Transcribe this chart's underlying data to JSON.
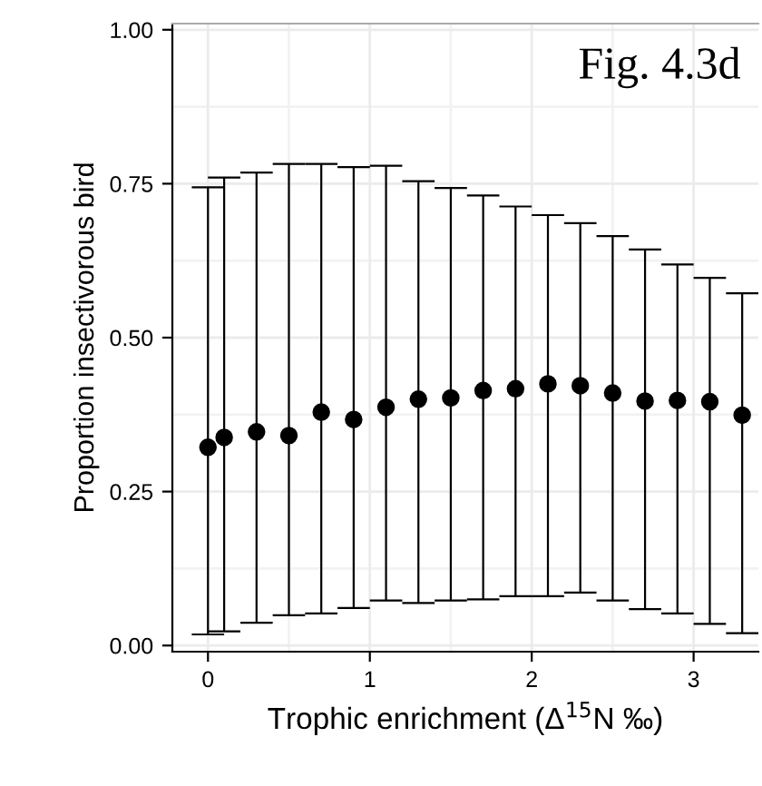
{
  "chart_data": {
    "type": "scatter",
    "xlabel": "Trophic enrichment (Δ$^{15}$N ‰)",
    "ylabel": "Proportion insectivorous bird",
    "annotations": [
      "Fig. 4.3d"
    ],
    "x": [
      0,
      0.1,
      0.3,
      0.5,
      0.7,
      0.9,
      1.1,
      1.3,
      1.5,
      1.7,
      1.9,
      2.1,
      2.3,
      2.5,
      2.7,
      2.9,
      3.1,
      3.3
    ],
    "series": [
      {
        "color": "#000000",
        "values": [
          0.322,
          0.338,
          0.347,
          0.341,
          0.379,
          0.367,
          0.387,
          0.4,
          0.402,
          0.414,
          0.417,
          0.425,
          0.422,
          0.41,
          0.397,
          0.398,
          0.396,
          0.374
        ],
        "errors": [
          [
            0.018,
            0.744
          ],
          [
            0.023,
            0.76
          ],
          [
            0.037,
            0.768
          ],
          [
            0.049,
            0.782
          ],
          [
            0.052,
            0.782
          ],
          [
            0.061,
            0.777
          ],
          [
            0.073,
            0.779
          ],
          [
            0.069,
            0.754
          ],
          [
            0.073,
            0.743
          ],
          [
            0.075,
            0.731
          ],
          [
            0.08,
            0.713
          ],
          [
            0.08,
            0.699
          ],
          [
            0.086,
            0.686
          ],
          [
            0.073,
            0.665
          ],
          [
            0.059,
            0.643
          ],
          [
            0.052,
            0.619
          ],
          [
            0.035,
            0.597
          ],
          [
            0.02,
            0.572
          ]
        ]
      }
    ],
    "marker": "circle",
    "grid": true,
    "xlim": [
      -0.22,
      3.4
    ],
    "xticks": [
      0,
      1,
      2,
      3
    ],
    "ylim": [
      -0.01,
      1.01
    ],
    "yticks": [
      {
        "value": 0,
        "label": "0.00"
      },
      {
        "value": 0.25,
        "label": "0.25"
      },
      {
        "value": 0.5,
        "label": "0.50"
      },
      {
        "value": 0.75,
        "label": "0.75"
      },
      {
        "value": 1,
        "label": "1.00"
      }
    ]
  }
}
